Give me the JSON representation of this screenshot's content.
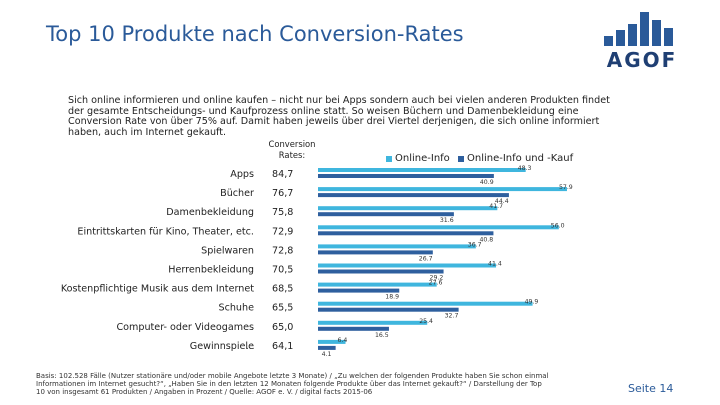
{
  "header": {
    "title": "Top 10 Produkte nach Conversion-Rates",
    "logo_text": "AGOF"
  },
  "intro_text": "Sich online informieren und online kaufen – nicht nur bei Apps sondern auch bei vielen anderen Produkten findet der gesamte Entscheidungs- und Kaufprozess online statt. So weisen Büchern und Damenbekleidung eine Conversion Rate von über 75% auf. Damit haben jeweils über drei Viertel derjenigen, die sich online informiert haben, auch im Internet gekauft.",
  "chart_data": {
    "type": "bar",
    "orientation": "horizontal",
    "conversion_header": "Conversion Rates:",
    "categories": [
      "Apps",
      "Bücher",
      "Damenbekleidung",
      "Eintrittskarten für Kino, Theater, etc.",
      "Spielwaren",
      "Herrenbekleidung",
      "Kostenpflichtige Musik aus dem Internet",
      "Schuhe",
      "Computer- oder Videogames",
      "Gewinnspiele"
    ],
    "conversion_rates": [
      "84,7",
      "76,7",
      "75,8",
      "72,9",
      "72,8",
      "70,5",
      "68,5",
      "65,5",
      "65,0",
      "64,1"
    ],
    "series": [
      {
        "name": "Online-Info",
        "color": "#3fb6de",
        "values": [
          48.3,
          57.9,
          41.7,
          56.0,
          36.7,
          41.4,
          27.6,
          49.9,
          25.4,
          6.4
        ]
      },
      {
        "name": "Online-Info und -Kauf",
        "color": "#2e5f9e",
        "values": [
          40.9,
          44.4,
          31.6,
          40.8,
          26.7,
          29.2,
          18.9,
          32.7,
          16.5,
          4.1
        ]
      }
    ],
    "xlim": [
      0,
      60
    ]
  },
  "ellipsis": "...",
  "footer": {
    "lines": [
      "Basis: 102.528 Fälle (Nutzer stationäre und/oder mobile Angebote letzte 3 Monate) / „Zu welchen der folgenden Produkte haben Sie schon einmal",
      "Informationen im Internet gesucht?“, „Haben Sie in den letzten 12 Monaten folgende Produkte über das Internet gekauft?“ / Darstellung der Top",
      "10 von insgesamt 61 Produkten / Angaben in Prozent / Quelle: AGOF e. V. / digital facts 2015-06"
    ],
    "page": "Seite 14"
  }
}
